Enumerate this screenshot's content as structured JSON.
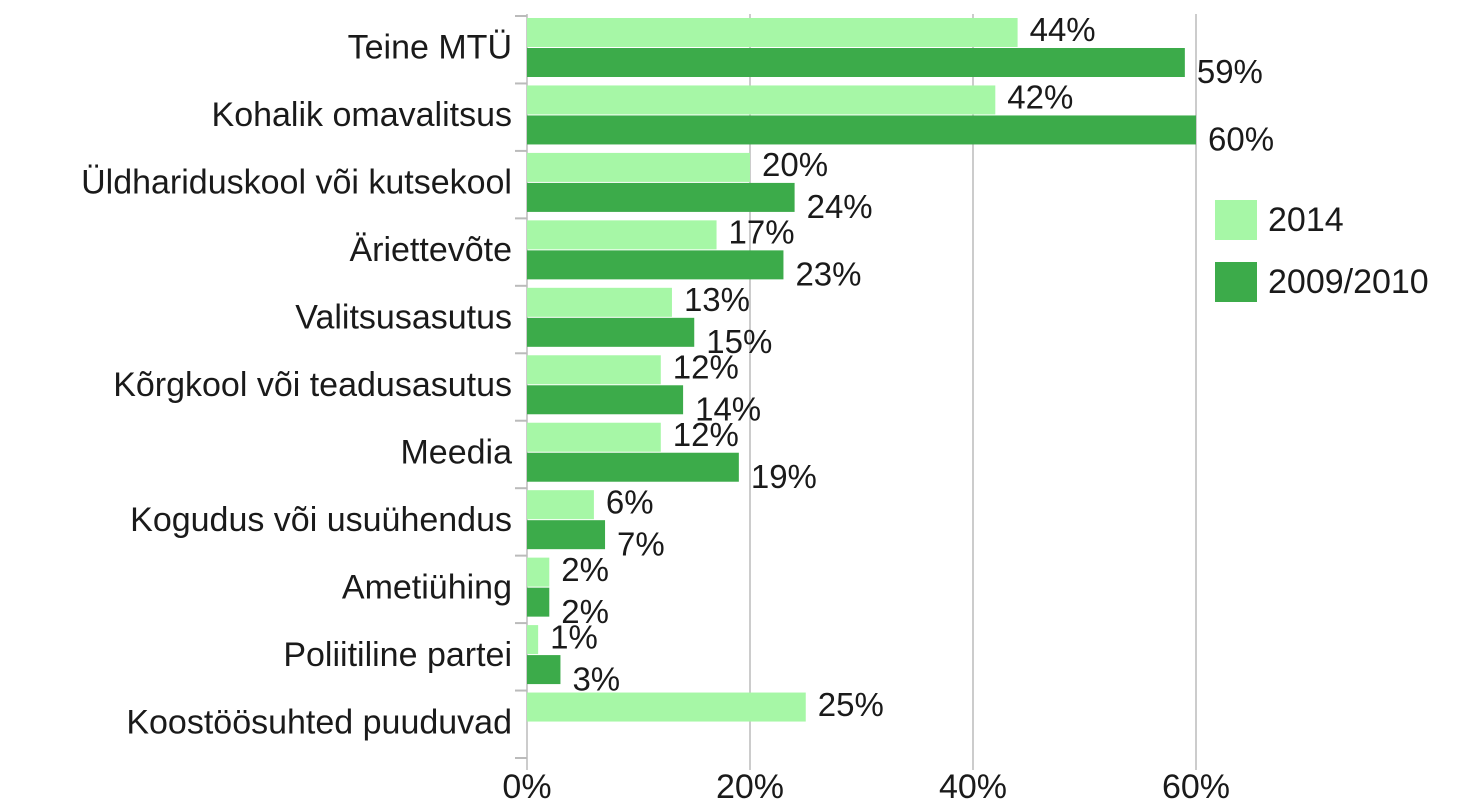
{
  "chart_data": {
    "type": "barh",
    "categories": [
      "Teine MTÜ",
      "Kohalik omavalitsus",
      "Üldhariduskool või kutsekool",
      "Äriettevõte",
      "Valitsusasutus",
      "Kõrgkool või teadusasutus",
      "Meedia",
      "Kogudus või usuühendus",
      "Ametiühing",
      "Poliitiline partei",
      "Koostöösuhted puuduvad"
    ],
    "series": [
      {
        "name": "2014",
        "color": "#a6f7a6",
        "values": [
          44,
          42,
          20,
          17,
          13,
          12,
          12,
          6,
          2,
          1,
          25
        ],
        "value_labels": [
          "44%",
          "42%",
          "20%",
          "17%",
          "13%",
          "12%",
          "12%",
          "6%",
          "2%",
          "1%",
          "25%"
        ]
      },
      {
        "name": "2009/2010",
        "color": "#3cab4a",
        "values": [
          59,
          60,
          24,
          23,
          15,
          14,
          19,
          7,
          2,
          3,
          null
        ],
        "value_labels": [
          "59%",
          "60%",
          "24%",
          "23%",
          "15%",
          "14%",
          "19%",
          "7%",
          "2%",
          "3%",
          null
        ]
      }
    ],
    "xlim": [
      0,
      60
    ],
    "xticks": [
      {
        "value": 0,
        "label": "0%"
      },
      {
        "value": 20,
        "label": "20%"
      },
      {
        "value": 40,
        "label": "40%"
      },
      {
        "value": 60,
        "label": "60%"
      }
    ],
    "grid": true,
    "legend": "right"
  }
}
